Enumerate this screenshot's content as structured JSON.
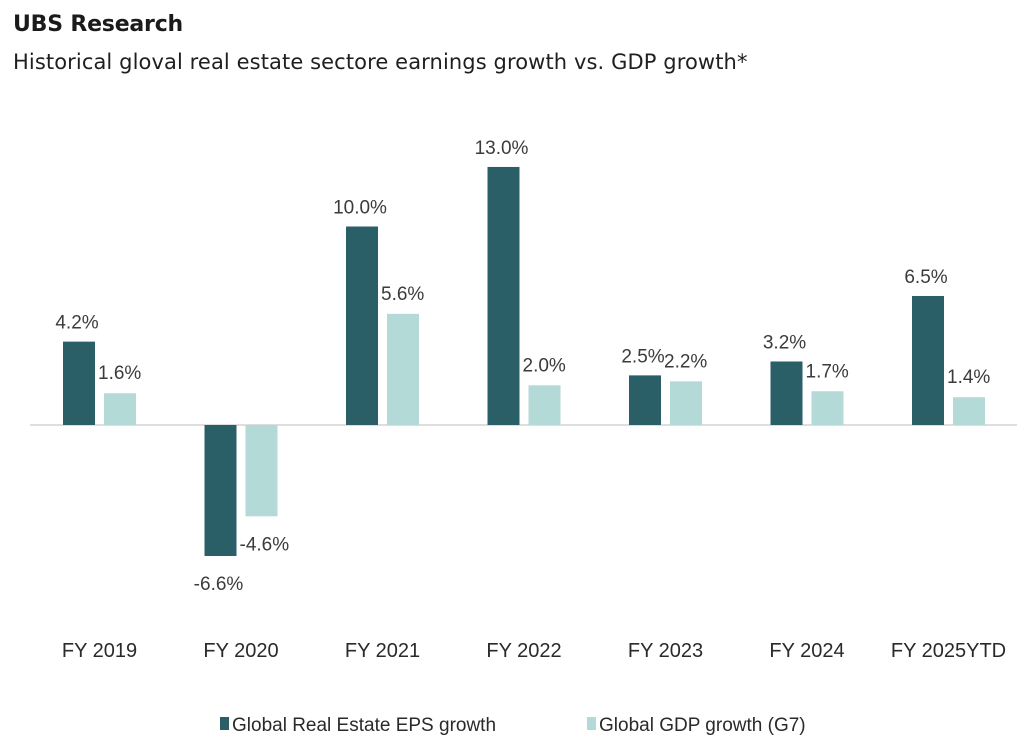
{
  "header": {
    "brand": "UBS Research",
    "subtitle": "Historical gloval real estate sectore earnings growth vs. GDP growth*"
  },
  "colors": {
    "eps": "#2b5f68",
    "gdp": "#b3dad6",
    "zero_line": "#d4d4d4"
  },
  "chart_data": {
    "type": "bar",
    "title": "Historical gloval real estate sectore earnings growth vs. GDP growth*",
    "xlabel": "",
    "ylabel": "",
    "categories": [
      "FY 2019",
      "FY 2020",
      "FY 2021",
      "FY 2022",
      "FY 2023",
      "FY 2024",
      "FY 2025YTD"
    ],
    "series": [
      {
        "name": "Global Real Estate EPS growth",
        "values": [
          4.2,
          -6.6,
          10.0,
          13.0,
          2.5,
          3.2,
          6.5
        ],
        "labels": [
          "4.2%",
          "-6.6%",
          "10.0%",
          "13.0%",
          "2.5%",
          "3.2%",
          "6.5%"
        ]
      },
      {
        "name": "Global GDP growth (G7)",
        "values": [
          1.6,
          -4.6,
          5.6,
          2.0,
          2.2,
          1.7,
          1.4
        ],
        "labels": [
          "1.6%",
          "-4.6%",
          "5.6%",
          "2.0%",
          "2.2%",
          "1.7%",
          "1.4%"
        ]
      }
    ],
    "ylim": [
      -8,
      14
    ],
    "grid": false,
    "legend_position": "bottom-center",
    "data_labels": true
  }
}
